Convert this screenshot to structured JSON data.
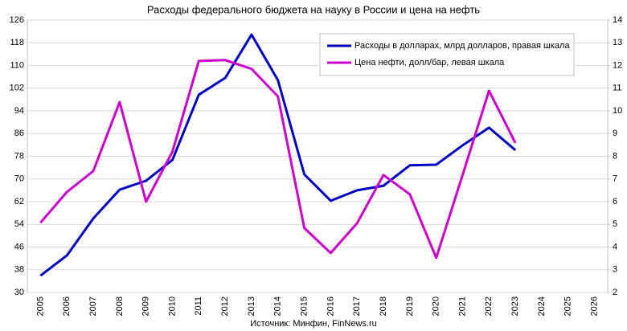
{
  "chart_data": {
    "type": "line",
    "title": "Расходы федерального бюджета на науку в России и цена на нефть",
    "source": "Источник: Минфин, FinNews.ru",
    "categories": [
      "2005",
      "2006",
      "2007",
      "2008",
      "2009",
      "2010",
      "2011",
      "2012",
      "2013",
      "2014",
      "2015",
      "2016",
      "2017",
      "2018",
      "2019",
      "2020",
      "2021",
      "2022",
      "2023",
      "2024",
      "2025",
      "2026"
    ],
    "series": [
      {
        "name": "Расходы в долларах, млрд долларов, правая шкала",
        "color": "#0000c0",
        "axis": "y2",
        "values": [
          2.74,
          3.63,
          5.26,
          6.53,
          6.92,
          7.84,
          10.71,
          11.45,
          13.36,
          11.35,
          7.2,
          6.04,
          6.5,
          6.7,
          7.6,
          7.63,
          8.48,
          9.26,
          8.27,
          null,
          null,
          null
        ]
      },
      {
        "name": "Цена нефти, долл/бар, левая шкала",
        "color": "#cc00cc",
        "values": [
          54.6,
          65.4,
          72.8,
          97.1,
          62.0,
          79.6,
          111.6,
          111.9,
          108.8,
          99.1,
          52.7,
          43.9,
          54.4,
          71.4,
          64.6,
          42.2,
          71.4,
          101.1,
          82.7,
          null,
          null,
          null
        ]
      }
    ],
    "ylim": [
      30,
      126
    ],
    "yticks": [
      30,
      38,
      46,
      54,
      62,
      70,
      78,
      86,
      94,
      102,
      110,
      118,
      126
    ],
    "y2lim": [
      2,
      14
    ],
    "y2ticks": [
      2,
      3,
      4,
      5,
      6,
      7,
      8,
      9,
      10,
      11,
      12,
      13,
      14
    ],
    "grid": true,
    "legend": "upper right"
  }
}
